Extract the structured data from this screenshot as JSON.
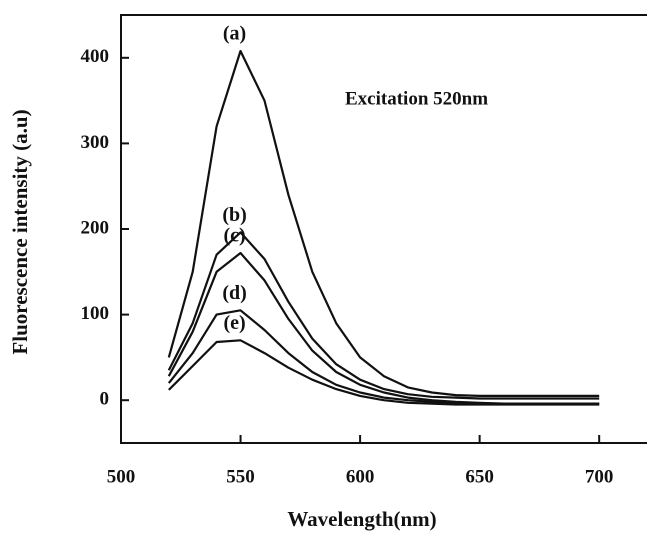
{
  "chart_data": {
    "type": "line",
    "x_label": "Wavelength(nm)",
    "y_label": "Fluorescence intensity (a.u)",
    "annotation": "Excitation 520nm",
    "x": [
      520,
      530,
      540,
      550,
      560,
      570,
      580,
      590,
      600,
      610,
      620,
      630,
      640,
      650,
      660,
      670,
      680,
      690,
      700
    ],
    "series": [
      {
        "name": "(a)",
        "color": "#111111",
        "values": [
          50,
          150,
          320,
          408,
          350,
          240,
          150,
          90,
          50,
          28,
          15,
          9,
          6,
          5,
          5,
          5,
          5,
          5,
          5
        ]
      },
      {
        "name": "(b)",
        "color": "#111111",
        "values": [
          35,
          90,
          170,
          196,
          165,
          115,
          72,
          42,
          24,
          13,
          7,
          4,
          3,
          2,
          2,
          2,
          2,
          2,
          2
        ]
      },
      {
        "name": "(c)",
        "color": "#111111",
        "values": [
          28,
          80,
          150,
          172,
          140,
          95,
          58,
          33,
          18,
          9,
          3,
          0,
          -2,
          -3,
          -4,
          -4,
          -4,
          -4,
          -4
        ]
      },
      {
        "name": "(d)",
        "color": "#111111",
        "values": [
          20,
          55,
          100,
          105,
          82,
          55,
          33,
          18,
          9,
          3,
          0,
          -2,
          -3,
          -4,
          -4,
          -4,
          -4,
          -4,
          -4
        ]
      },
      {
        "name": "(e)",
        "color": "#111111",
        "values": [
          12,
          40,
          68,
          70,
          55,
          38,
          24,
          13,
          5,
          0,
          -3,
          -4,
          -5,
          -5,
          -5,
          -5,
          -5,
          -5,
          -5
        ]
      }
    ],
    "xlim": [
      500,
      720
    ],
    "xticks": [
      500,
      550,
      600,
      650,
      700
    ],
    "ylim": [
      -50,
      450
    ],
    "yticks": [
      0,
      100,
      200,
      300,
      400
    ],
    "grid": false
  }
}
